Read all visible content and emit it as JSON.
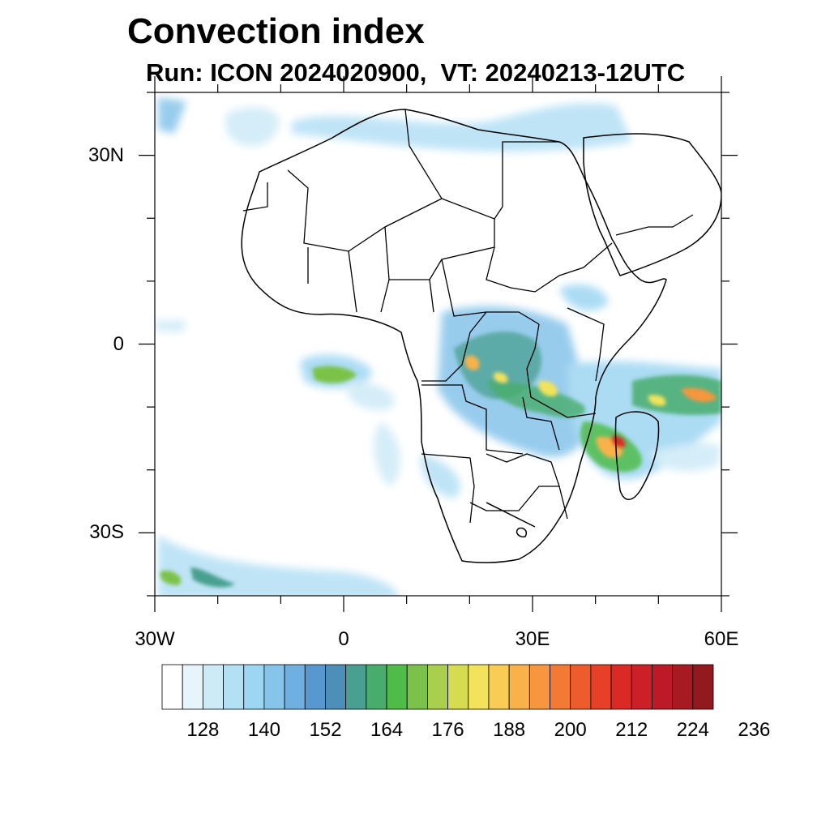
{
  "title": "Convection index",
  "subtitle": "Run: ICON 2024020900,  VT: 20240213-12UTC",
  "axes": {
    "lat_ticks": [
      "30N",
      "0",
      "30S"
    ],
    "lon_ticks": [
      "30W",
      "0",
      "30E",
      "60E"
    ],
    "lat_values": [
      30,
      0,
      -30
    ],
    "lon_values": [
      -30,
      0,
      30,
      60
    ],
    "lat_range": [
      -40,
      40
    ],
    "lon_range": [
      -30,
      60
    ]
  },
  "colorbar": {
    "labels": [
      "128",
      "140",
      "152",
      "164",
      "176",
      "188",
      "200",
      "212",
      "224",
      "236"
    ],
    "label_values": [
      128,
      140,
      152,
      164,
      176,
      188,
      200,
      212,
      224,
      236
    ],
    "colors": [
      "#ffffff",
      "#e6f4fb",
      "#cdeaf7",
      "#b4e0f5",
      "#9dd6f3",
      "#86c4ea",
      "#6fb0e0",
      "#5898d0",
      "#4d8fb8",
      "#4aa090",
      "#48ad6c",
      "#4fbc4a",
      "#7cc24a",
      "#a9cf4c",
      "#d6dc50",
      "#f2e35a",
      "#f9cc55",
      "#f9b24a",
      "#f7963e",
      "#f27a35",
      "#ec5c2c",
      "#e64026",
      "#db2a26",
      "#cc2028",
      "#bb1a26",
      "#a81a22",
      "#921a1e"
    ]
  },
  "legend_placement": "bottom"
}
